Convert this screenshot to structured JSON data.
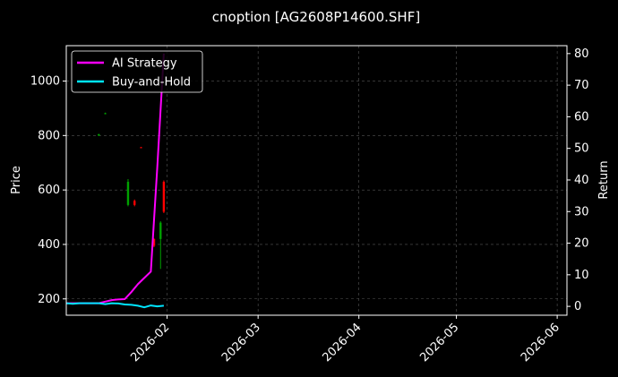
{
  "chart_data": {
    "type": "line",
    "title": "cnoption [AG2608P14600.SHF]",
    "ylabel": "Price",
    "y2label": "Return",
    "x_ticks": [
      "2026-02",
      "2026-03",
      "2026-04",
      "2026-05",
      "2026-06"
    ],
    "x_tick_dates": [
      "2026-02-01",
      "2026-03-01",
      "2026-04-01",
      "2026-05-01",
      "2026-06-01"
    ],
    "xlim": [
      "2026-01-01",
      "2026-06-04"
    ],
    "y_ticks": [
      200,
      400,
      600,
      800,
      1000
    ],
    "ylim": [
      140,
      1130
    ],
    "y2_ticks": [
      0,
      10,
      20,
      30,
      40,
      50,
      60,
      70,
      80
    ],
    "y2lim": [
      -2.8,
      82.5
    ],
    "grid": true,
    "legend_position": "top-left",
    "series": [
      {
        "name": "AI Strategy",
        "color": "#ff00ff",
        "axis": "right",
        "x": [
          "2026-01-01",
          "2026-01-03",
          "2026-01-05",
          "2026-01-07",
          "2026-01-09",
          "2026-01-11",
          "2026-01-13",
          "2026-01-15",
          "2026-01-17",
          "2026-01-19",
          "2026-01-21",
          "2026-01-23",
          "2026-01-25",
          "2026-01-27",
          "2026-01-29",
          "2026-01-31"
        ],
        "values": [
          1,
          1,
          1,
          1,
          1,
          1,
          1.5,
          2,
          2.2,
          2.3,
          4.5,
          7,
          9,
          11,
          44,
          80
        ]
      },
      {
        "name": "Buy-and-Hold",
        "color": "#00e5ff",
        "axis": "right",
        "x": [
          "2026-01-01",
          "2026-01-03",
          "2026-01-05",
          "2026-01-07",
          "2026-01-09",
          "2026-01-11",
          "2026-01-13",
          "2026-01-15",
          "2026-01-17",
          "2026-01-19",
          "2026-01-21",
          "2026-01-23",
          "2026-01-25",
          "2026-01-27",
          "2026-01-29",
          "2026-01-31"
        ],
        "values": [
          1,
          0.8,
          1,
          1,
          1,
          1,
          0.7,
          1,
          0.9,
          0.6,
          0.5,
          0.2,
          -0.3,
          0.3,
          0,
          0.2
        ]
      }
    ],
    "candles": [
      {
        "date": "2026-01-11",
        "open": 800,
        "close": 805,
        "high": 806,
        "low": 798,
        "color": "#00a000"
      },
      {
        "date": "2026-01-13",
        "open": 880,
        "close": 882,
        "high": 884,
        "low": 878,
        "color": "#00a000"
      },
      {
        "date": "2026-01-20",
        "open": 545,
        "close": 630,
        "high": 640,
        "low": 540,
        "color": "#00a000"
      },
      {
        "date": "2026-01-22",
        "open": 560,
        "close": 545,
        "high": 565,
        "low": 540,
        "color": "#ff0000"
      },
      {
        "date": "2026-01-24",
        "open": 757,
        "close": 755,
        "high": 758,
        "low": 754,
        "color": "#ff0000"
      },
      {
        "date": "2026-01-28",
        "open": 420,
        "close": 395,
        "high": 422,
        "low": 390,
        "color": "#ff0000"
      },
      {
        "date": "2026-01-30",
        "open": 420,
        "close": 480,
        "high": 485,
        "low": 310,
        "color": "#00a000"
      },
      {
        "date": "2026-01-31",
        "open": 630,
        "close": 520,
        "high": 635,
        "low": 515,
        "color": "#ff0000"
      }
    ]
  }
}
